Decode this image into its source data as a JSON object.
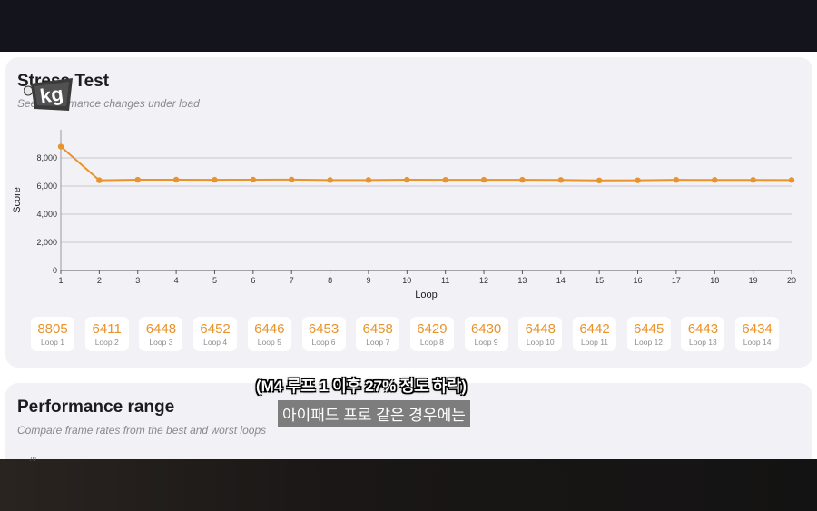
{
  "stress": {
    "title": "Stress Test",
    "subtitle": "See performance changes under load"
  },
  "chart_data": {
    "type": "line",
    "x": [
      1,
      2,
      3,
      4,
      5,
      6,
      7,
      8,
      9,
      10,
      11,
      12,
      13,
      14,
      15,
      16,
      17,
      18,
      19,
      20
    ],
    "series": [
      {
        "values": [
          8805,
          6411,
          6448,
          6452,
          6446,
          6453,
          6458,
          6429,
          6430,
          6448,
          6442,
          6445,
          6443,
          6434,
          6400,
          6410,
          6440,
          6435,
          6438,
          6430
        ]
      }
    ],
    "xlabel": "Loop",
    "ylabel": "Score",
    "xlim": [
      1,
      20
    ],
    "ylim": [
      0,
      10000
    ],
    "yticks": [
      0,
      2000,
      4000,
      6000,
      8000
    ],
    "ytick_labels": [
      "0",
      "2,000",
      "4,000",
      "6,000",
      "8,000"
    ],
    "grid": true,
    "color": "#e8932c"
  },
  "scores": [
    {
      "value": "8805",
      "label": "Loop 1"
    },
    {
      "value": "6411",
      "label": "Loop 2"
    },
    {
      "value": "6448",
      "label": "Loop 3"
    },
    {
      "value": "6452",
      "label": "Loop 4"
    },
    {
      "value": "6446",
      "label": "Loop 5"
    },
    {
      "value": "6453",
      "label": "Loop 6"
    },
    {
      "value": "6458",
      "label": "Loop 7"
    },
    {
      "value": "6429",
      "label": "Loop 8"
    },
    {
      "value": "6430",
      "label": "Loop 9"
    },
    {
      "value": "6448",
      "label": "Loop 10"
    },
    {
      "value": "6442",
      "label": "Loop 11"
    },
    {
      "value": "6445",
      "label": "Loop 12"
    },
    {
      "value": "6443",
      "label": "Loop 13"
    },
    {
      "value": "6434",
      "label": "Loop 14"
    }
  ],
  "range": {
    "title": "Performance range",
    "subtitle": "Compare frame rates from the best and worst loops",
    "axis_top": "70"
  },
  "overlay": {
    "caption": "(M4 루프 1 이후 27% 정도 하락)",
    "subtitle": "아이패드 프로 같은 경우에는",
    "logo_text": "kg"
  },
  "colors": {
    "accent": "#e8932c",
    "card": "#f2f2f6"
  }
}
